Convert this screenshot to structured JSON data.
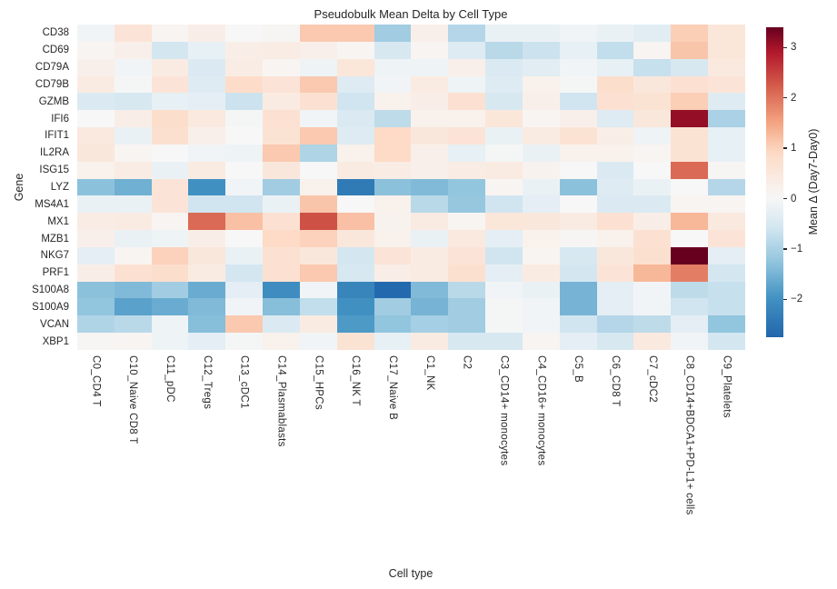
{
  "title": "Pseudobulk Mean Delta by Cell Type",
  "xlabel": "Cell type",
  "ylabel": "Gene",
  "colorbar": {
    "label": "Mean Δ (Day7-Day0)",
    "tick_values": [
      3,
      2,
      1,
      0,
      -1,
      -2
    ],
    "tick_labels": [
      "3",
      "2",
      "1",
      "0",
      "−1",
      "−2"
    ]
  },
  "chart_data": {
    "type": "heatmap",
    "title": "Pseudobulk Mean Delta by Cell Type",
    "xlabel": "Cell type",
    "ylabel": "Gene",
    "legend_label": "Mean Δ (Day7-Day0)",
    "colormap": "RdBu_r",
    "vmin": -2.75,
    "vmax": 3.4,
    "center": 0,
    "grid": false,
    "columns": [
      "C0_CD4 T",
      "C10_Naive CD8 T",
      "C11_pDC",
      "C12_Tregs",
      "C13_cDC1",
      "C14_Plasmablasts",
      "C15_HPCs",
      "C16_NK T",
      "C17_Naive B",
      "C1_NK",
      "C2",
      "C3_CD14+ monocytes",
      "C4_CD16+ monocytes",
      "C5_B",
      "C6_CD8 T",
      "C7_cDC2",
      "C8_CD14+BDCA1+PD-L1+ cells",
      "C9_Platelets"
    ],
    "rows": [
      "CD38",
      "CD69",
      "CD79A",
      "CD79B",
      "GZMB",
      "IFI6",
      "IFIT1",
      "IL2RA",
      "ISG15",
      "LYZ",
      "MS4A1",
      "MX1",
      "MZB1",
      "NKG7",
      "PRF1",
      "S100A8",
      "S100A9",
      "VCAN",
      "XBP1"
    ],
    "values": [
      [
        -0.1,
        0.6,
        0.1,
        0.3,
        0.0,
        0.05,
        1.1,
        1.1,
        -1.1,
        0.25,
        -0.9,
        -0.2,
        -0.2,
        -0.1,
        -0.2,
        -0.35,
        1.05,
        0.55
      ],
      [
        0.1,
        0.25,
        -0.55,
        -0.25,
        0.3,
        0.35,
        0.25,
        0.1,
        -0.5,
        0.1,
        -0.4,
        -0.85,
        -0.65,
        -0.25,
        -0.75,
        0.1,
        1.15,
        0.55
      ],
      [
        0.25,
        -0.1,
        0.4,
        -0.45,
        0.35,
        0.1,
        -0.15,
        0.55,
        -0.15,
        -0.15,
        0.25,
        -0.45,
        -0.35,
        -0.1,
        -0.25,
        -0.7,
        -0.5,
        0.45
      ],
      [
        0.4,
        -0.05,
        0.6,
        -0.4,
        0.85,
        0.6,
        1.1,
        -0.4,
        -0.1,
        0.4,
        -0.15,
        -0.4,
        0.2,
        -0.05,
        0.8,
        0.5,
        0.7,
        0.6
      ],
      [
        -0.45,
        -0.5,
        -0.25,
        -0.3,
        -0.65,
        0.4,
        0.7,
        -0.6,
        0.2,
        0.3,
        0.7,
        -0.5,
        0.25,
        -0.6,
        0.7,
        0.65,
        1.05,
        -0.4
      ],
      [
        0.0,
        0.3,
        0.8,
        0.45,
        -0.05,
        0.7,
        -0.1,
        -0.45,
        -0.8,
        0.2,
        0.2,
        0.55,
        0.1,
        0.25,
        -0.4,
        0.5,
        3.1,
        -1.0
      ],
      [
        0.45,
        -0.2,
        0.75,
        0.25,
        0.0,
        0.65,
        1.1,
        -0.4,
        0.9,
        0.5,
        0.6,
        -0.2,
        0.4,
        0.65,
        0.3,
        -0.15,
        0.65,
        -0.25
      ],
      [
        0.5,
        0.1,
        0.0,
        -0.1,
        -0.15,
        1.1,
        -0.95,
        0.2,
        0.9,
        0.25,
        -0.25,
        -0.05,
        -0.2,
        0.2,
        0.2,
        0.1,
        0.65,
        -0.25
      ],
      [
        0.2,
        0.35,
        -0.2,
        0.4,
        0.0,
        0.5,
        0.0,
        0.4,
        0.35,
        0.25,
        0.35,
        0.4,
        0.15,
        0.0,
        -0.45,
        0.0,
        2.1,
        0.05
      ],
      [
        -1.3,
        -1.55,
        0.6,
        -2.0,
        -0.1,
        -1.1,
        0.2,
        -2.4,
        -1.3,
        -1.4,
        -1.25,
        0.1,
        -0.2,
        -1.3,
        -0.4,
        -0.2,
        0.0,
        -0.9
      ],
      [
        -0.2,
        -0.2,
        0.6,
        -0.6,
        -0.6,
        -0.2,
        1.15,
        0.0,
        0.2,
        -0.85,
        -1.2,
        -0.6,
        -0.3,
        0.0,
        -0.45,
        -0.45,
        0.1,
        0.1
      ],
      [
        0.35,
        0.4,
        0.1,
        2.1,
        1.2,
        0.7,
        2.35,
        1.2,
        0.15,
        0.4,
        0.1,
        0.55,
        0.5,
        0.4,
        0.7,
        0.3,
        1.3,
        0.45
      ],
      [
        0.25,
        -0.2,
        -0.15,
        0.3,
        0.0,
        0.9,
        1.0,
        0.5,
        0.2,
        -0.2,
        0.45,
        -0.3,
        0.2,
        0.05,
        0.2,
        0.7,
        0.0,
        0.6
      ],
      [
        -0.3,
        0.1,
        1.0,
        0.5,
        -0.2,
        0.7,
        0.5,
        -0.55,
        0.6,
        0.4,
        0.6,
        -0.6,
        0.1,
        -0.5,
        0.5,
        0.75,
        3.4,
        -0.3
      ],
      [
        0.3,
        0.7,
        0.8,
        0.4,
        -0.55,
        0.7,
        1.1,
        -0.5,
        0.3,
        0.4,
        0.75,
        -0.3,
        0.4,
        -0.55,
        0.6,
        1.3,
        1.9,
        -0.55
      ],
      [
        -1.3,
        -1.4,
        -1.1,
        -1.6,
        -0.3,
        -2.05,
        -0.1,
        -2.2,
        -2.7,
        -1.4,
        -0.85,
        -0.1,
        -0.2,
        -1.5,
        -0.3,
        -0.1,
        -0.8,
        -0.7
      ],
      [
        -1.25,
        -1.75,
        -1.6,
        -1.4,
        -0.1,
        -1.35,
        -0.75,
        -2.0,
        -1.1,
        -1.5,
        -1.1,
        -0.05,
        -0.1,
        -1.5,
        -0.3,
        -0.1,
        -0.6,
        -0.7
      ],
      [
        -0.95,
        -0.85,
        -0.15,
        -1.35,
        1.1,
        -0.45,
        0.4,
        -1.85,
        -1.25,
        -1.05,
        -1.1,
        -0.05,
        -0.1,
        -0.6,
        -0.9,
        -0.8,
        -0.3,
        -1.25
      ],
      [
        0.05,
        0.1,
        -0.15,
        -0.3,
        -0.05,
        0.2,
        -0.1,
        0.65,
        -0.25,
        0.4,
        -0.5,
        -0.5,
        0.1,
        -0.3,
        -0.5,
        0.45,
        -0.1,
        -0.55
      ]
    ],
    "color_stops": [
      [
        -2.75,
        "#2166ac"
      ],
      [
        -1.95,
        "#4393c3"
      ],
      [
        -1.25,
        "#92c5de"
      ],
      [
        -0.6,
        "#d1e5f0"
      ],
      [
        0.0,
        "#f7f7f7"
      ],
      [
        0.9,
        "#fddbc7"
      ],
      [
        1.5,
        "#f4a582"
      ],
      [
        2.2,
        "#d6604d"
      ],
      [
        2.9,
        "#b2182b"
      ],
      [
        3.4,
        "#67001f"
      ]
    ]
  }
}
